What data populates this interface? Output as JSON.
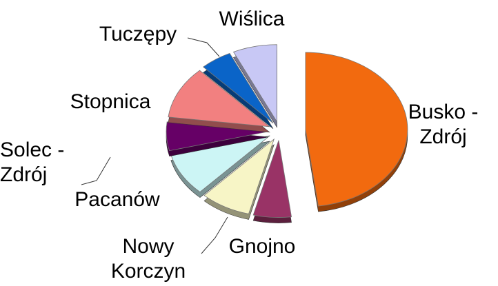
{
  "chart_data": {
    "type": "pie",
    "categories": [
      "Busko - Zdrój",
      "Gnojno",
      "Nowy Korczyn",
      "Pacanów",
      "Solec - Zdrój",
      "Stopnica",
      "Tuczępy",
      "Wiślica"
    ],
    "values": [
      48,
      6,
      8,
      9,
      6,
      11,
      5,
      7
    ],
    "colors": [
      "#f26a0f",
      "#993366",
      "#f7f5c6",
      "#ccf5f5",
      "#660066",
      "#f28080",
      "#0a64c8",
      "#c8c8f5"
    ]
  }
}
